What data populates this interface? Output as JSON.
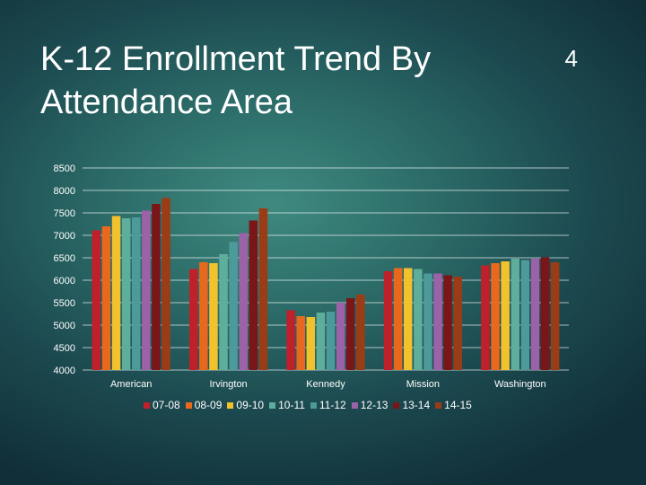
{
  "slide": {
    "title": "K-12 Enrollment Trend By Attendance Area",
    "number": "4"
  },
  "chart_data": {
    "type": "bar",
    "title": "K-12 Enrollment Trend By Attendance Area",
    "xlabel": "",
    "ylabel": "",
    "ylim": [
      4000,
      8500
    ],
    "yticks": [
      4000,
      4500,
      5000,
      5500,
      6000,
      6500,
      7000,
      7500,
      8000,
      8500
    ],
    "grid": true,
    "legend_position": "bottom",
    "categories": [
      "American",
      "Irvington",
      "Kennedy",
      "Mission",
      "Washington"
    ],
    "series": [
      {
        "name": "07-08",
        "color": "#c0202a",
        "values": [
          7110,
          6250,
          5330,
          6200,
          6330
        ]
      },
      {
        "name": "08-09",
        "color": "#e8691e",
        "values": [
          7200,
          6400,
          5200,
          6270,
          6380
        ]
      },
      {
        "name": "09-10",
        "color": "#f2c12e",
        "values": [
          7430,
          6380,
          5180,
          6270,
          6420
        ]
      },
      {
        "name": "10-11",
        "color": "#5fae9b",
        "values": [
          7380,
          6580,
          5280,
          6250,
          6480
        ]
      },
      {
        "name": "11-12",
        "color": "#4d9a9a",
        "values": [
          7400,
          6850,
          5300,
          6150,
          6450
        ]
      },
      {
        "name": "12-13",
        "color": "#9c62a8",
        "values": [
          7550,
          7050,
          5500,
          6150,
          6480
        ]
      },
      {
        "name": "13-14",
        "color": "#7a1518",
        "values": [
          7700,
          7330,
          5600,
          6110,
          6510
        ]
      },
      {
        "name": "14-15",
        "color": "#9a3d16",
        "values": [
          7830,
          7600,
          5680,
          6080,
          6400
        ]
      }
    ]
  }
}
